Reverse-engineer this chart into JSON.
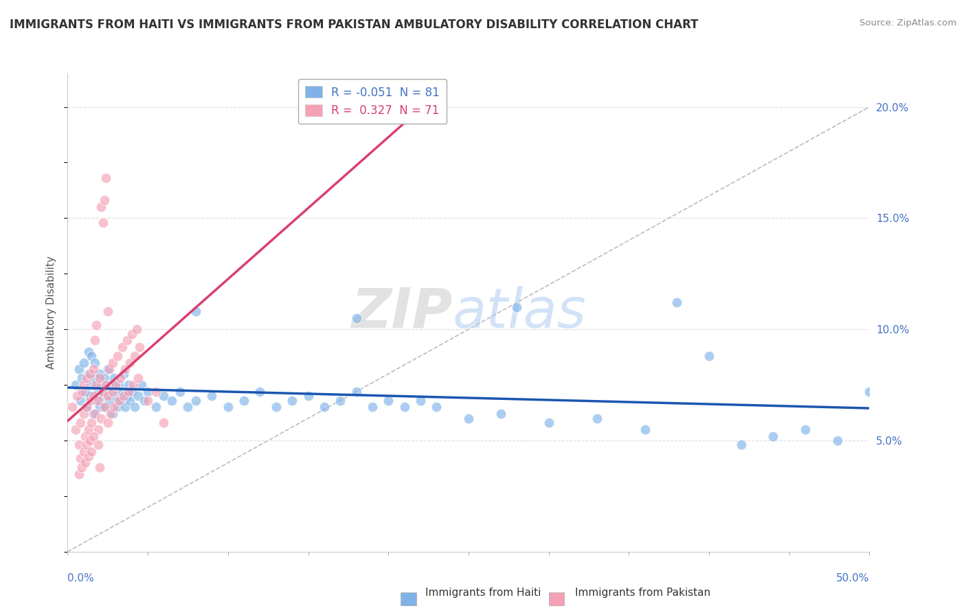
{
  "title": "IMMIGRANTS FROM HAITI VS IMMIGRANTS FROM PAKISTAN AMBULATORY DISABILITY CORRELATION CHART",
  "source": "Source: ZipAtlas.com",
  "ylabel": "Ambulatory Disability",
  "xlim": [
    0.0,
    0.5
  ],
  "ylim": [
    0.0,
    0.215
  ],
  "haiti_R": -0.051,
  "haiti_N": 81,
  "pakistan_R": 0.327,
  "pakistan_N": 71,
  "haiti_color": "#7fb3e8",
  "pakistan_color": "#f4a0b5",
  "haiti_line_color": "#1a56b0",
  "pakistan_line_color": "#d94070",
  "legend_label_haiti": "Immigrants from Haiti",
  "legend_label_pakistan": "Immigrants from Pakistan",
  "haiti_x": [
    0.005,
    0.007,
    0.008,
    0.009,
    0.01,
    0.011,
    0.012,
    0.013,
    0.013,
    0.014,
    0.015,
    0.015,
    0.016,
    0.017,
    0.017,
    0.018,
    0.019,
    0.02,
    0.02,
    0.021,
    0.022,
    0.023,
    0.024,
    0.025,
    0.025,
    0.026,
    0.027,
    0.028,
    0.029,
    0.03,
    0.031,
    0.032,
    0.033,
    0.034,
    0.035,
    0.036,
    0.037,
    0.038,
    0.039,
    0.04,
    0.042,
    0.044,
    0.046,
    0.048,
    0.05,
    0.055,
    0.06,
    0.065,
    0.07,
    0.075,
    0.08,
    0.09,
    0.1,
    0.11,
    0.12,
    0.13,
    0.14,
    0.15,
    0.16,
    0.17,
    0.18,
    0.19,
    0.2,
    0.21,
    0.22,
    0.23,
    0.25,
    0.27,
    0.3,
    0.33,
    0.36,
    0.4,
    0.42,
    0.44,
    0.46,
    0.48,
    0.5,
    0.38,
    0.28,
    0.18,
    0.08
  ],
  "haiti_y": [
    0.075,
    0.082,
    0.068,
    0.078,
    0.085,
    0.072,
    0.065,
    0.08,
    0.09,
    0.07,
    0.075,
    0.088,
    0.062,
    0.078,
    0.085,
    0.068,
    0.072,
    0.065,
    0.08,
    0.075,
    0.07,
    0.078,
    0.065,
    0.072,
    0.082,
    0.068,
    0.075,
    0.062,
    0.078,
    0.07,
    0.065,
    0.075,
    0.068,
    0.072,
    0.08,
    0.065,
    0.07,
    0.075,
    0.068,
    0.072,
    0.065,
    0.07,
    0.075,
    0.068,
    0.072,
    0.065,
    0.07,
    0.068,
    0.072,
    0.065,
    0.068,
    0.07,
    0.065,
    0.068,
    0.072,
    0.065,
    0.068,
    0.07,
    0.065,
    0.068,
    0.072,
    0.065,
    0.068,
    0.065,
    0.068,
    0.065,
    0.06,
    0.062,
    0.058,
    0.06,
    0.055,
    0.088,
    0.048,
    0.052,
    0.055,
    0.05,
    0.072,
    0.112,
    0.11,
    0.105,
    0.108
  ],
  "pakistan_x": [
    0.003,
    0.005,
    0.006,
    0.007,
    0.008,
    0.009,
    0.01,
    0.01,
    0.011,
    0.012,
    0.012,
    0.013,
    0.014,
    0.014,
    0.015,
    0.016,
    0.016,
    0.017,
    0.018,
    0.019,
    0.019,
    0.02,
    0.021,
    0.022,
    0.023,
    0.024,
    0.025,
    0.025,
    0.026,
    0.027,
    0.028,
    0.028,
    0.029,
    0.03,
    0.031,
    0.032,
    0.033,
    0.034,
    0.035,
    0.036,
    0.037,
    0.038,
    0.039,
    0.04,
    0.041,
    0.042,
    0.043,
    0.044,
    0.045,
    0.05,
    0.055,
    0.06,
    0.007,
    0.008,
    0.009,
    0.01,
    0.011,
    0.012,
    0.013,
    0.014,
    0.015,
    0.016,
    0.017,
    0.018,
    0.019,
    0.02,
    0.021,
    0.022,
    0.023,
    0.024,
    0.025
  ],
  "pakistan_y": [
    0.065,
    0.055,
    0.07,
    0.048,
    0.058,
    0.072,
    0.062,
    0.075,
    0.052,
    0.065,
    0.078,
    0.055,
    0.068,
    0.08,
    0.058,
    0.07,
    0.082,
    0.062,
    0.075,
    0.055,
    0.068,
    0.078,
    0.06,
    0.072,
    0.065,
    0.075,
    0.058,
    0.07,
    0.082,
    0.062,
    0.072,
    0.085,
    0.065,
    0.075,
    0.088,
    0.068,
    0.078,
    0.092,
    0.07,
    0.082,
    0.095,
    0.072,
    0.085,
    0.098,
    0.075,
    0.088,
    0.1,
    0.078,
    0.092,
    0.068,
    0.072,
    0.058,
    0.035,
    0.042,
    0.038,
    0.045,
    0.04,
    0.048,
    0.043,
    0.05,
    0.045,
    0.052,
    0.095,
    0.102,
    0.048,
    0.038,
    0.155,
    0.148,
    0.158,
    0.168,
    0.108
  ]
}
